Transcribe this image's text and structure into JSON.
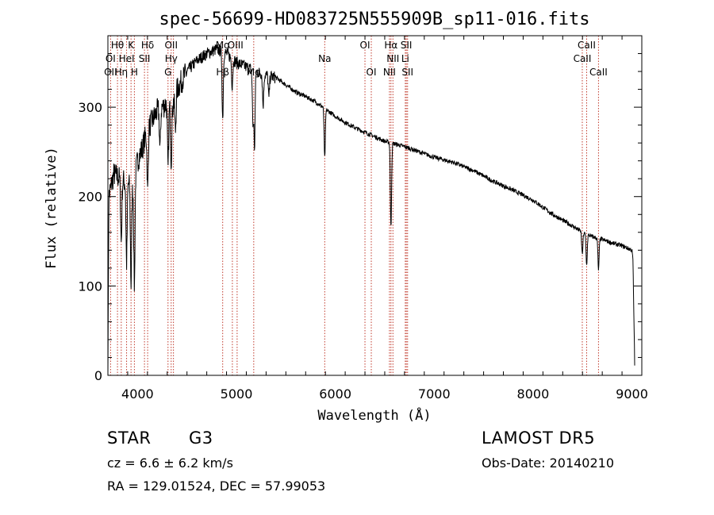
{
  "chart_data": {
    "type": "line",
    "title": "spec-56699-HD083725N555909B_sp11-016.fits",
    "xlabel": "Wavelength (Å)",
    "ylabel": "Flux (relative)",
    "xlim": [
      3700,
      9100
    ],
    "ylim": [
      0,
      380
    ],
    "xticks": [
      4000,
      5000,
      6000,
      7000,
      8000,
      9000
    ],
    "yticks": [
      0,
      100,
      200,
      300
    ],
    "grid": false,
    "line_color": "#000000",
    "marker_color": "#c0392b",
    "continuum": [
      [
        3700,
        0
      ],
      [
        3710,
        200
      ],
      [
        3760,
        225
      ],
      [
        3800,
        222
      ],
      [
        3850,
        218
      ],
      [
        3900,
        215
      ],
      [
        3950,
        210
      ],
      [
        4000,
        240
      ],
      [
        4050,
        255
      ],
      [
        4100,
        275
      ],
      [
        4150,
        285
      ],
      [
        4200,
        296
      ],
      [
        4250,
        300
      ],
      [
        4300,
        305
      ],
      [
        4350,
        300
      ],
      [
        4400,
        320
      ],
      [
        4450,
        330
      ],
      [
        4500,
        340
      ],
      [
        4600,
        352
      ],
      [
        4700,
        360
      ],
      [
        4800,
        365
      ],
      [
        4900,
        360
      ],
      [
        5000,
        350
      ],
      [
        5100,
        345
      ],
      [
        5200,
        340
      ],
      [
        5300,
        336
      ],
      [
        5400,
        333
      ],
      [
        5500,
        325
      ],
      [
        5600,
        317
      ],
      [
        5700,
        312
      ],
      [
        5800,
        306
      ],
      [
        5900,
        298
      ],
      [
        6000,
        290
      ],
      [
        6100,
        283
      ],
      [
        6200,
        277
      ],
      [
        6300,
        272
      ],
      [
        6400,
        267
      ],
      [
        6500,
        262
      ],
      [
        6600,
        259
      ],
      [
        6700,
        256
      ],
      [
        6800,
        252
      ],
      [
        6900,
        248
      ],
      [
        7000,
        244
      ],
      [
        7200,
        238
      ],
      [
        7400,
        229
      ],
      [
        7600,
        217
      ],
      [
        7800,
        207
      ],
      [
        8000,
        196
      ],
      [
        8200,
        180
      ],
      [
        8400,
        167
      ],
      [
        8500,
        160
      ],
      [
        8600,
        155
      ],
      [
        8700,
        152
      ],
      [
        8800,
        148
      ],
      [
        8900,
        145
      ],
      [
        9000,
        140
      ],
      [
        9010,
        130
      ],
      [
        9030,
        0
      ]
    ],
    "absorption_lines": [
      {
        "x": 3835,
        "depth": 70
      },
      {
        "x": 3889,
        "depth": 90
      },
      {
        "x": 3934,
        "depth": 110
      },
      {
        "x": 3968,
        "depth": 120
      },
      {
        "x": 4102,
        "depth": 70
      },
      {
        "x": 4227,
        "depth": 45
      },
      {
        "x": 4308,
        "depth": 75
      },
      {
        "x": 4340,
        "depth": 60
      },
      {
        "x": 4383,
        "depth": 40
      },
      {
        "x": 4861,
        "depth": 75
      },
      {
        "x": 4957,
        "depth": 30
      },
      {
        "x": 5167,
        "depth": 60
      },
      {
        "x": 5183,
        "depth": 85
      },
      {
        "x": 5270,
        "depth": 35
      },
      {
        "x": 5328,
        "depth": 25
      },
      {
        "x": 5893,
        "depth": 55
      },
      {
        "x": 6563,
        "depth": 95
      },
      {
        "x": 8498,
        "depth": 25
      },
      {
        "x": 8542,
        "depth": 35
      },
      {
        "x": 8662,
        "depth": 35
      }
    ],
    "line_markers": [
      {
        "label": "Hθ",
        "x": 3797,
        "row": 1
      },
      {
        "label": "K",
        "x": 3934,
        "row": 1
      },
      {
        "label": "Hδ",
        "x": 4102,
        "row": 1
      },
      {
        "label": "OII",
        "x": 4340,
        "row": 1
      },
      {
        "label": "Mg",
        "x": 4861,
        "row": 1
      },
      {
        "label": "OIII",
        "x": 4990,
        "row": 1
      },
      {
        "label": "OI",
        "x": 6300,
        "row": 1
      },
      {
        "label": "Hα",
        "x": 6563,
        "row": 1
      },
      {
        "label": "SII",
        "x": 6718,
        "row": 1
      },
      {
        "label": "CaII",
        "x": 8542,
        "row": 1
      },
      {
        "label": "OI",
        "x": 3727,
        "row": 2
      },
      {
        "label": "HeI",
        "x": 3889,
        "row": 2
      },
      {
        "label": "SII",
        "x": 4070,
        "row": 2
      },
      {
        "label": "Hγ",
        "x": 4340,
        "row": 2
      },
      {
        "label": "Na",
        "x": 5893,
        "row": 2
      },
      {
        "label": "NII",
        "x": 6583,
        "row": 2
      },
      {
        "label": "Li",
        "x": 6708,
        "row": 2
      },
      {
        "label": "CaII",
        "x": 8498,
        "row": 2
      },
      {
        "label": "OII",
        "x": 3727,
        "row": 3
      },
      {
        "label": "Hη",
        "x": 3835,
        "row": 3
      },
      {
        "label": "H",
        "x": 3968,
        "row": 3
      },
      {
        "label": "G",
        "x": 4308,
        "row": 3
      },
      {
        "label": "Hβ",
        "x": 4861,
        "row": 3
      },
      {
        "label": "Mg",
        "x": 5175,
        "row": 3
      },
      {
        "label": "OI",
        "x": 6364,
        "row": 3
      },
      {
        "label": "NII",
        "x": 6548,
        "row": 3
      },
      {
        "label": "SII",
        "x": 6731,
        "row": 3
      },
      {
        "label": "CaII",
        "x": 8662,
        "row": 3
      }
    ],
    "marker_lines": [
      3727,
      3797,
      3835,
      3889,
      3934,
      3968,
      4070,
      4102,
      4308,
      4340,
      4363,
      4861,
      4959,
      5007,
      5175,
      5893,
      6300,
      6364,
      6548,
      6563,
      6583,
      6708,
      6718,
      6731,
      8498,
      8542,
      8662
    ]
  },
  "info": {
    "object_class": "STAR",
    "subclass": "G3",
    "redshift": "cz = 6.6 ± 6.2 km/s",
    "coords": "RA = 129.01524, DEC =  57.99053",
    "survey": "LAMOST DR5",
    "obs_date": "Obs-Date: 20140210"
  }
}
